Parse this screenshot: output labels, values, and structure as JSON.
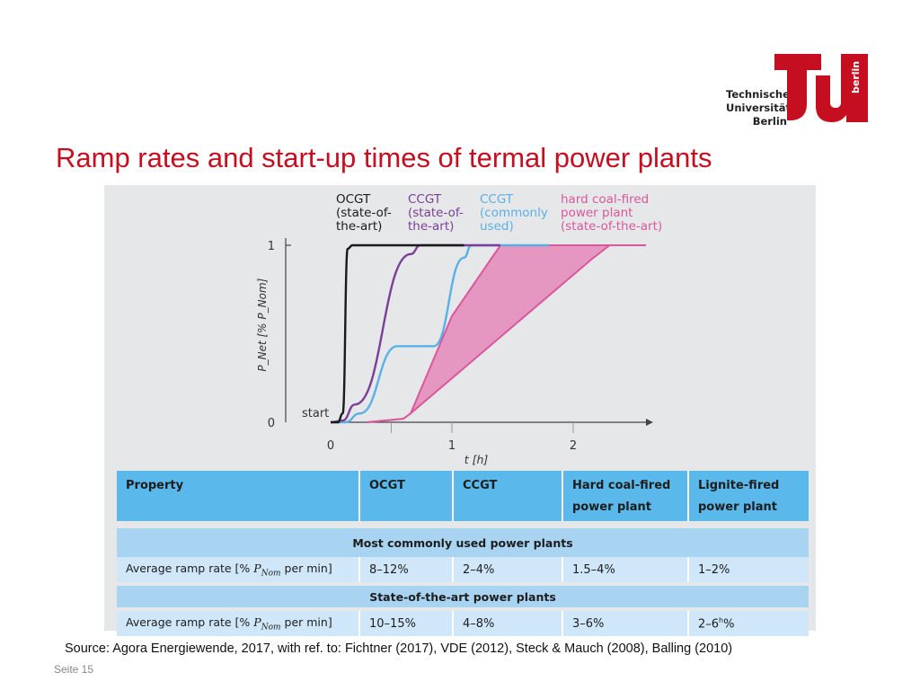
{
  "logo": {
    "lines": [
      "Technische",
      "Universität",
      "Berlin"
    ],
    "side_text": "berlin",
    "mark": "TU"
  },
  "slide": {
    "title": "Ramp rates and start-up times of termal power plants",
    "source": "Source: Agora Energiewende, 2017, with ref. to: Fichtner (2017), VDE (2012), Steck & Mauch (2008), Balling (2010)",
    "page": "Seite 15"
  },
  "chart_data": {
    "type": "line",
    "xlabel": "t [h]",
    "ylabel": "P_Net [% P_Nom]",
    "x_ticks": [
      "0",
      "1",
      "2"
    ],
    "y_ticks": [
      "0",
      "1"
    ],
    "xlim": [
      0,
      2.6
    ],
    "ylim": [
      0,
      1
    ],
    "start_label": "start",
    "series": [
      {
        "name": "OCGT (state-of-the-art)",
        "name_lines": [
          "OCGT",
          "(state-of-",
          "the-art)"
        ],
        "color": "#1a1a1a",
        "points": [
          [
            0,
            0
          ],
          [
            0.06,
            0
          ],
          [
            0.1,
            0.05
          ],
          [
            0.14,
            0.98
          ],
          [
            0.18,
            1
          ],
          [
            1.1,
            1
          ]
        ]
      },
      {
        "name": "CCGT (state-of-the-art)",
        "name_lines": [
          "CCGT",
          "(state-of-",
          "the-art)"
        ],
        "color": "#7b3f97",
        "points": [
          [
            0,
            0
          ],
          [
            0.1,
            0.01
          ],
          [
            0.2,
            0.1
          ],
          [
            0.66,
            0.95
          ],
          [
            0.74,
            1
          ],
          [
            1.4,
            1
          ]
        ]
      },
      {
        "name": "CCGT (commonly used)",
        "name_lines": [
          "CCGT",
          "(commonly",
          "used)"
        ],
        "color": "#5ab0e6",
        "points": [
          [
            0,
            0
          ],
          [
            0.12,
            0
          ],
          [
            0.24,
            0.05
          ],
          [
            0.55,
            0.43
          ],
          [
            0.85,
            0.43
          ],
          [
            1.1,
            0.93
          ],
          [
            1.16,
            1
          ],
          [
            1.8,
            1
          ]
        ]
      },
      {
        "name": "hard coal-fired power plant (state-of-the-art)",
        "name_lines": [
          "hard coal-fired",
          "power plant",
          "(state-of-the-art)"
        ],
        "color": "#d9579b",
        "upper": [
          [
            0.3,
            0
          ],
          [
            0.6,
            0.02
          ],
          [
            0.66,
            0.05
          ],
          [
            1.0,
            0.6
          ],
          [
            1.4,
            1
          ],
          [
            2.6,
            1
          ]
        ],
        "lower": [
          [
            0.3,
            0
          ],
          [
            0.6,
            0.02
          ],
          [
            0.66,
            0.05
          ],
          [
            2.15,
            0.92
          ],
          [
            2.3,
            1
          ],
          [
            2.6,
            1
          ]
        ]
      }
    ]
  },
  "table": {
    "headers": [
      [
        "Property"
      ],
      [
        "OCGT"
      ],
      [
        "CCGT"
      ],
      [
        "Hard coal-fired",
        "power plant"
      ],
      [
        "Lignite-fired",
        "power plant"
      ]
    ],
    "sections": [
      {
        "title": "Most commonly used power plants",
        "row_label": "Average ramp rate [% ",
        "row_unit_sym": "P",
        "row_unit_sub": "Nom",
        "row_label_end": " per min]",
        "values": [
          "8–12%",
          "2–4%",
          "1.5–4%",
          "1–2%"
        ]
      },
      {
        "title": "State-of-the-art power plants",
        "row_label": "Average ramp rate [% ",
        "row_unit_sym": "P",
        "row_unit_sub": "Nom",
        "row_label_end": " per min]",
        "values": [
          "10–15%",
          "4–8%",
          "3–6%",
          "2–6"
        ],
        "lignite_footnote": "h",
        "lignite_suffix": "%"
      }
    ]
  },
  "colors": {
    "title_red": "#c50e1f",
    "header_blue": "#5bb8ea",
    "section_blue": "#a8d3f1",
    "row_blue": "#cfe7f8",
    "figure_bg": "#e6e7e9",
    "pink_fill": "#e597c1"
  }
}
